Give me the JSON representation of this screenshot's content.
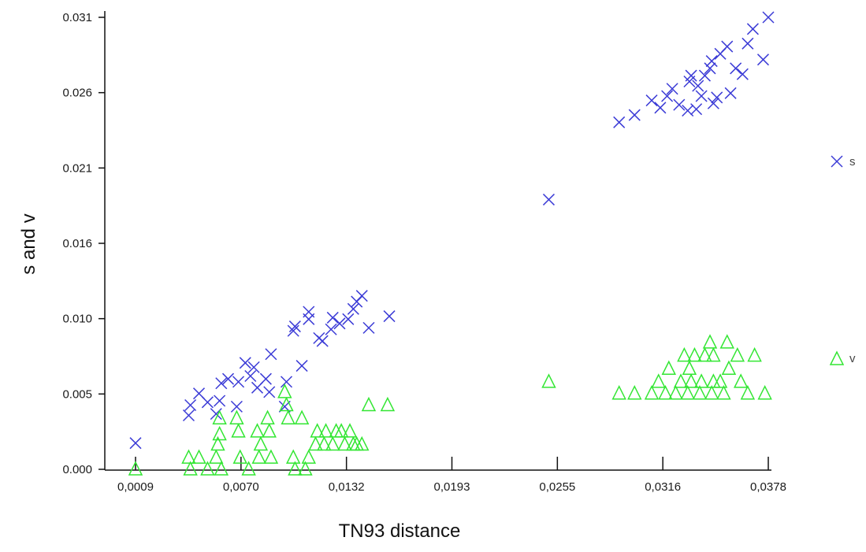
{
  "chart_data": {
    "type": "scatter",
    "title": "",
    "xlabel": "TN93 distance",
    "ylabel": "s and v",
    "x_ticks": [
      "0,0009",
      "0,0070",
      "0,0132",
      "0,0193",
      "0,0255",
      "0,0316",
      "0,0378"
    ],
    "y_ticks": [
      "0.000",
      "0.005",
      "0.010",
      "0.016",
      "0.021",
      "0.026",
      "0.031"
    ],
    "xlim": [
      0.0009,
      0.0378
    ],
    "ylim": [
      0.0,
      0.031
    ],
    "grid": false,
    "legend_position": "right",
    "series": [
      {
        "name": "s",
        "marker": "x",
        "color": "#3b3bd6",
        "points": [
          [
            0.0009,
            0.0018
          ],
          [
            0.004,
            0.0037
          ],
          [
            0.0041,
            0.0044
          ],
          [
            0.0046,
            0.0052
          ],
          [
            0.0051,
            0.0046
          ],
          [
            0.0056,
            0.0038
          ],
          [
            0.0058,
            0.0047
          ],
          [
            0.0059,
            0.0059
          ],
          [
            0.0063,
            0.0062
          ],
          [
            0.0068,
            0.0043
          ],
          [
            0.0069,
            0.006
          ],
          [
            0.0073,
            0.0073
          ],
          [
            0.0076,
            0.0064
          ],
          [
            0.0078,
            0.007
          ],
          [
            0.008,
            0.0056
          ],
          [
            0.0085,
            0.0062
          ],
          [
            0.0087,
            0.0053
          ],
          [
            0.0088,
            0.0079
          ],
          [
            0.0096,
            0.0043
          ],
          [
            0.0097,
            0.006
          ],
          [
            0.0101,
            0.0095
          ],
          [
            0.0102,
            0.0098
          ],
          [
            0.0106,
            0.0071
          ],
          [
            0.011,
            0.0108
          ],
          [
            0.011,
            0.0103
          ],
          [
            0.0116,
            0.009
          ],
          [
            0.0118,
            0.0088
          ],
          [
            0.0123,
            0.0096
          ],
          [
            0.0124,
            0.0104
          ],
          [
            0.0128,
            0.01
          ],
          [
            0.0133,
            0.0103
          ],
          [
            0.0136,
            0.011
          ],
          [
            0.0138,
            0.0115
          ],
          [
            0.0141,
            0.0119
          ],
          [
            0.0145,
            0.0097
          ],
          [
            0.0157,
            0.0105
          ],
          [
            0.025,
            0.0185
          ],
          [
            0.0291,
            0.0238
          ],
          [
            0.03,
            0.0243
          ],
          [
            0.031,
            0.0253
          ],
          [
            0.0315,
            0.0248
          ],
          [
            0.0319,
            0.0256
          ],
          [
            0.0322,
            0.0261
          ],
          [
            0.0326,
            0.025
          ],
          [
            0.0331,
            0.0246
          ],
          [
            0.0332,
            0.0266
          ],
          [
            0.0333,
            0.027
          ],
          [
            0.0336,
            0.0247
          ],
          [
            0.0337,
            0.0263
          ],
          [
            0.0339,
            0.0256
          ],
          [
            0.0341,
            0.027
          ],
          [
            0.0344,
            0.0275
          ],
          [
            0.0345,
            0.028
          ],
          [
            0.0346,
            0.0251
          ],
          [
            0.0348,
            0.0255
          ],
          [
            0.035,
            0.0285
          ],
          [
            0.0354,
            0.029
          ],
          [
            0.0356,
            0.0258
          ],
          [
            0.0359,
            0.0275
          ],
          [
            0.0363,
            0.0271
          ],
          [
            0.0366,
            0.0292
          ],
          [
            0.0369,
            0.0302
          ],
          [
            0.0375,
            0.0281
          ],
          [
            0.0378,
            0.031
          ]
        ]
      },
      {
        "name": "v",
        "marker": "triangle",
        "color": "#33e633",
        "points": [
          [
            0.0009,
            0.0
          ],
          [
            0.004,
            0.0008
          ],
          [
            0.0041,
            0.0
          ],
          [
            0.0046,
            0.0008
          ],
          [
            0.0051,
            0.0
          ],
          [
            0.0056,
            0.0008
          ],
          [
            0.0057,
            0.0017
          ],
          [
            0.0058,
            0.0024
          ],
          [
            0.0058,
            0.0035
          ],
          [
            0.0059,
            0.0
          ],
          [
            0.0068,
            0.0035
          ],
          [
            0.0069,
            0.0026
          ],
          [
            0.007,
            0.0008
          ],
          [
            0.0075,
            0.0
          ],
          [
            0.008,
            0.0026
          ],
          [
            0.0081,
            0.0008
          ],
          [
            0.0082,
            0.0017
          ],
          [
            0.0086,
            0.0035
          ],
          [
            0.0087,
            0.0026
          ],
          [
            0.0088,
            0.0008
          ],
          [
            0.0096,
            0.0053
          ],
          [
            0.0097,
            0.0044
          ],
          [
            0.0098,
            0.0035
          ],
          [
            0.0101,
            0.0008
          ],
          [
            0.0102,
            0.0
          ],
          [
            0.0106,
            0.0035
          ],
          [
            0.0108,
            0.0
          ],
          [
            0.011,
            0.0008
          ],
          [
            0.0114,
            0.0017
          ],
          [
            0.0115,
            0.0026
          ],
          [
            0.0119,
            0.0017
          ],
          [
            0.012,
            0.0026
          ],
          [
            0.0124,
            0.0017
          ],
          [
            0.0126,
            0.0026
          ],
          [
            0.0129,
            0.0026
          ],
          [
            0.0131,
            0.0017
          ],
          [
            0.0134,
            0.0026
          ],
          [
            0.0136,
            0.0017
          ],
          [
            0.0138,
            0.0017
          ],
          [
            0.0141,
            0.0017
          ],
          [
            0.0145,
            0.0044
          ],
          [
            0.0156,
            0.0044
          ],
          [
            0.025,
            0.006
          ],
          [
            0.0291,
            0.0052
          ],
          [
            0.03,
            0.0052
          ],
          [
            0.031,
            0.0052
          ],
          [
            0.0314,
            0.006
          ],
          [
            0.0318,
            0.0052
          ],
          [
            0.032,
            0.0069
          ],
          [
            0.0324,
            0.0052
          ],
          [
            0.0327,
            0.006
          ],
          [
            0.0329,
            0.0078
          ],
          [
            0.0331,
            0.0052
          ],
          [
            0.0332,
            0.0069
          ],
          [
            0.0333,
            0.006
          ],
          [
            0.0335,
            0.0078
          ],
          [
            0.0338,
            0.0052
          ],
          [
            0.0339,
            0.006
          ],
          [
            0.0341,
            0.0078
          ],
          [
            0.0344,
            0.0087
          ],
          [
            0.0345,
            0.0052
          ],
          [
            0.0346,
            0.006
          ],
          [
            0.0346,
            0.0078
          ],
          [
            0.035,
            0.006
          ],
          [
            0.0352,
            0.0052
          ],
          [
            0.0354,
            0.0087
          ],
          [
            0.0355,
            0.0069
          ],
          [
            0.036,
            0.0078
          ],
          [
            0.0362,
            0.006
          ],
          [
            0.0366,
            0.0052
          ],
          [
            0.037,
            0.0078
          ],
          [
            0.0376,
            0.0052
          ]
        ]
      }
    ]
  }
}
